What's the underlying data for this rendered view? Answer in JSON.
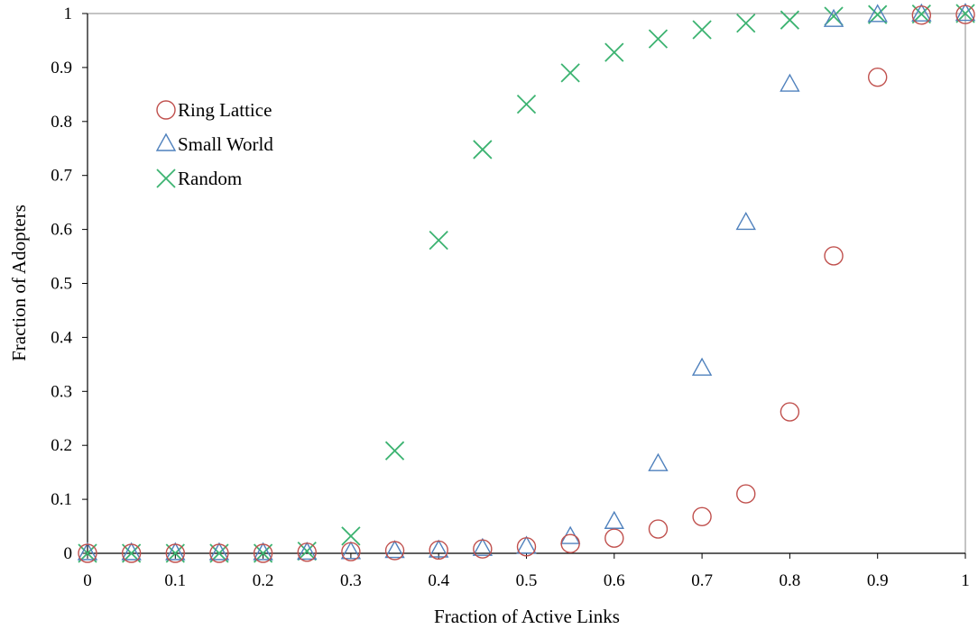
{
  "chart_data": {
    "type": "scatter",
    "xlabel": "Fraction of Active Links",
    "ylabel": "Fraction of Adopters",
    "xlim": [
      0,
      1
    ],
    "ylim": [
      0,
      1
    ],
    "x_ticks": [
      "0",
      "0.1",
      "0.2",
      "0.3",
      "0.4",
      "0.5",
      "0.6",
      "0.7",
      "0.8",
      "0.9",
      "1"
    ],
    "y_ticks": [
      "0",
      "0.1",
      "0.2",
      "0.3",
      "0.4",
      "0.5",
      "0.6",
      "0.7",
      "0.8",
      "0.9",
      "1"
    ],
    "grid": false,
    "legend_position": "upper-left",
    "x": [
      0,
      0.05,
      0.1,
      0.15,
      0.2,
      0.25,
      0.3,
      0.35,
      0.4,
      0.45,
      0.5,
      0.55,
      0.6,
      0.65,
      0.7,
      0.75,
      0.8,
      0.85,
      0.9,
      0.95,
      1
    ],
    "series": [
      {
        "name": "Ring Lattice",
        "marker": "circle",
        "color": "#c0504d",
        "values": [
          0,
          0,
          0,
          0,
          0,
          0.002,
          0.003,
          0.005,
          0.006,
          0.008,
          0.012,
          0.018,
          0.028,
          0.045,
          0.068,
          0.11,
          0.262,
          0.551,
          0.882,
          0.997,
          0.998
        ]
      },
      {
        "name": "Small World",
        "marker": "triangle",
        "color": "#4f81bd",
        "values": [
          0,
          0,
          0,
          0,
          0,
          0.001,
          0.002,
          0.004,
          0.005,
          0.008,
          0.012,
          0.03,
          0.058,
          0.165,
          0.342,
          0.612,
          0.868,
          0.988,
          0.997,
          0.998,
          0.999
        ]
      },
      {
        "name": "Random",
        "marker": "x",
        "color": "#3cb371",
        "values": [
          0,
          0,
          0,
          0,
          0,
          0.004,
          0.032,
          0.19,
          0.58,
          0.748,
          0.832,
          0.89,
          0.928,
          0.953,
          0.97,
          0.982,
          0.988,
          0.995,
          0.998,
          0.999,
          1.0
        ]
      }
    ]
  }
}
